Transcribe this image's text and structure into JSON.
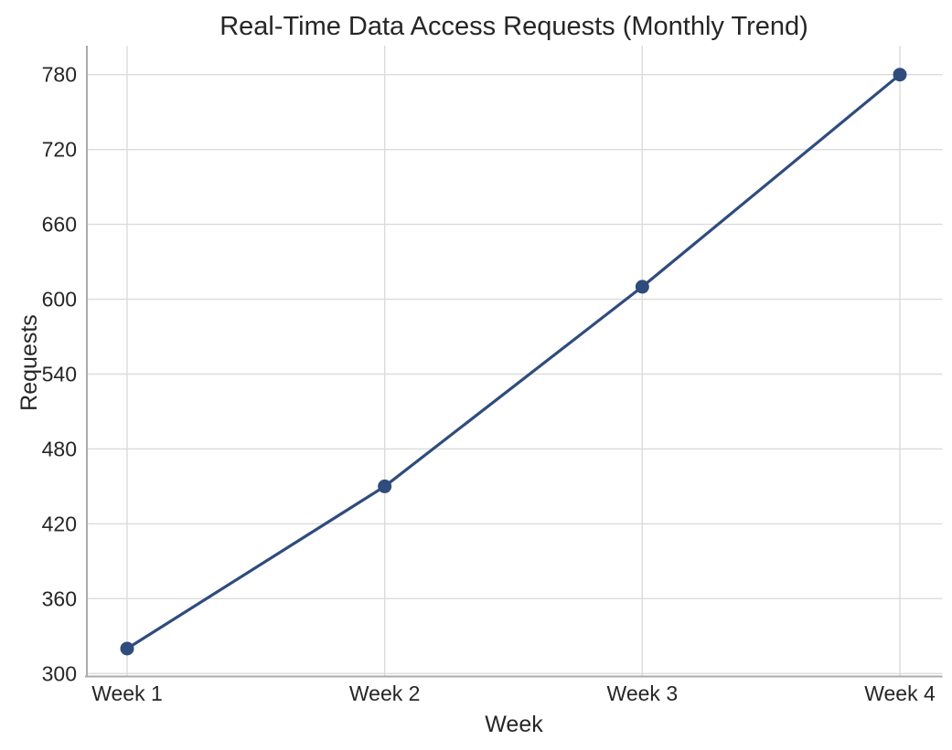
{
  "chart_data": {
    "type": "line",
    "title": "Real-Time Data Access Requests (Monthly Trend)",
    "xlabel": "Week",
    "ylabel": "Requests",
    "categories": [
      "Week 1",
      "Week 2",
      "Week 3",
      "Week 4"
    ],
    "series": [
      {
        "name": "Requests",
        "values": [
          320,
          450,
          610,
          780
        ]
      }
    ],
    "yticks": [
      300,
      360,
      420,
      480,
      540,
      600,
      660,
      720,
      780
    ],
    "ylim": [
      298,
      803
    ],
    "grid": true,
    "legend_visible": false,
    "marker": "circle",
    "colors": {
      "line": "#2F4C7D",
      "marker": "#2F4C7D",
      "grid": "#DBDBDB",
      "spine": "#ABABAB",
      "text": "#262626",
      "background": "#FFFFFF"
    }
  }
}
